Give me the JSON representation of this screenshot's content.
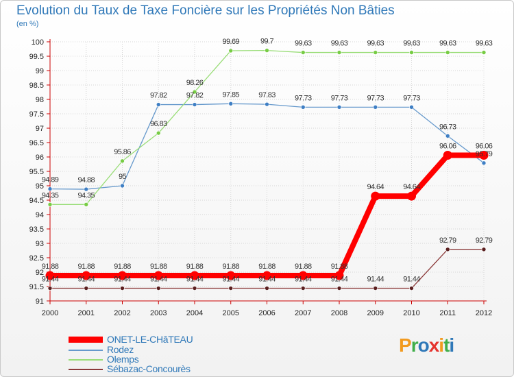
{
  "title": "Evolution du Taux de Taxe Foncière sur les Propriétés Non Bâties",
  "unit_label": "(en %)",
  "logo": {
    "letters": [
      "P",
      "r",
      "o",
      "x",
      "i",
      "t",
      "i"
    ],
    "colors": [
      "#f29a1f",
      "#3fae49",
      "#2f78b8",
      "#e5322d",
      "#f29a1f",
      "#3fae49",
      "#2f78b8"
    ]
  },
  "chart_data": {
    "type": "line",
    "title": "Evolution du Taux de Taxe Foncière sur les Propriétés Non Bâties",
    "ylabel": "(en %)",
    "xlabel": "",
    "x": [
      "2000",
      "2001",
      "2002",
      "2003",
      "2004",
      "2005",
      "2006",
      "2007",
      "2008",
      "2009",
      "2010",
      "2011",
      "2012"
    ],
    "ylim": [
      91,
      100
    ],
    "yticks": [
      "91",
      "91.5",
      "92",
      "92.5",
      "93",
      "93.5",
      "94",
      "94.5",
      "95",
      "95.5",
      "96",
      "96.5",
      "97",
      "97.5",
      "98",
      "98.5",
      "99",
      "99.5",
      "100"
    ],
    "grid": true,
    "legend_position": "bottom-left",
    "series": [
      {
        "name": "ONET-LE-CHâTEAU",
        "color": "#ff0000",
        "values": [
          91.88,
          91.88,
          91.88,
          91.88,
          91.88,
          91.88,
          91.88,
          91.88,
          91.88,
          94.64,
          94.64,
          96.06,
          96.06
        ],
        "labels": [
          "91.88",
          "91.88",
          "91.88",
          "91.88",
          "91.88",
          "91.88",
          "91.88",
          "91.88",
          "91.88",
          "94.64",
          "94.64",
          "96.06",
          "96.06"
        ]
      },
      {
        "name": "Rodez",
        "color": "#6699cc",
        "values": [
          94.89,
          94.88,
          95,
          97.82,
          97.82,
          97.85,
          97.83,
          97.73,
          97.73,
          97.73,
          97.73,
          96.73,
          95.79
        ],
        "labels": [
          "94.89",
          "94.88",
          "95",
          "97.82",
          "97.82",
          "97.85",
          "97.83",
          "97.73",
          "97.73",
          "97.73",
          "97.73",
          "96.73",
          "95.79"
        ]
      },
      {
        "name": "Olemps",
        "color": "#99dd77",
        "values": [
          94.35,
          94.35,
          95.86,
          96.83,
          98.26,
          99.69,
          99.7,
          99.63,
          99.63,
          99.63,
          99.63,
          99.63,
          99.63
        ],
        "labels": [
          "94.35",
          "94.35",
          "95.86",
          "96.83",
          "98.26",
          "99.69",
          "99.7",
          "99.63",
          "99.63",
          "99.63",
          "99.63",
          "99.63",
          "99.63"
        ]
      },
      {
        "name": "Sébazac-Concourès",
        "color": "#8b3a3a",
        "values": [
          91.44,
          91.44,
          91.44,
          91.44,
          91.44,
          91.44,
          91.44,
          91.44,
          91.44,
          91.44,
          91.44,
          92.79,
          92.79
        ],
        "labels": [
          "91.44",
          "91.44",
          "91.44",
          "91.44",
          "91.44",
          "91.44",
          "91.44",
          "91.44",
          "91.44",
          "91.44",
          "91.44",
          "92.79",
          "92.79"
        ]
      }
    ]
  }
}
